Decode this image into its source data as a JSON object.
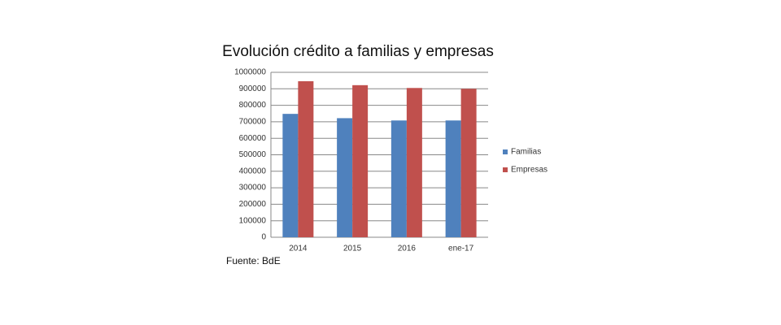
{
  "chart_data": {
    "type": "bar",
    "title": "Evolución crédito a familias y empresas",
    "source": "Fuente: BdE",
    "categories": [
      "2014",
      "2015",
      "2016",
      "ene-17"
    ],
    "series": [
      {
        "name": "Familias",
        "color": "#4f81bd",
        "values": [
          748000,
          722000,
          708000,
          708000
        ]
      },
      {
        "name": "Empresas",
        "color": "#c0504d",
        "values": [
          946000,
          922000,
          905000,
          900000
        ]
      }
    ],
    "ylim": [
      0,
      1000000
    ],
    "yticks": [
      0,
      100000,
      200000,
      300000,
      400000,
      500000,
      600000,
      700000,
      800000,
      900000,
      1000000
    ],
    "grid": true,
    "legend": "right"
  }
}
